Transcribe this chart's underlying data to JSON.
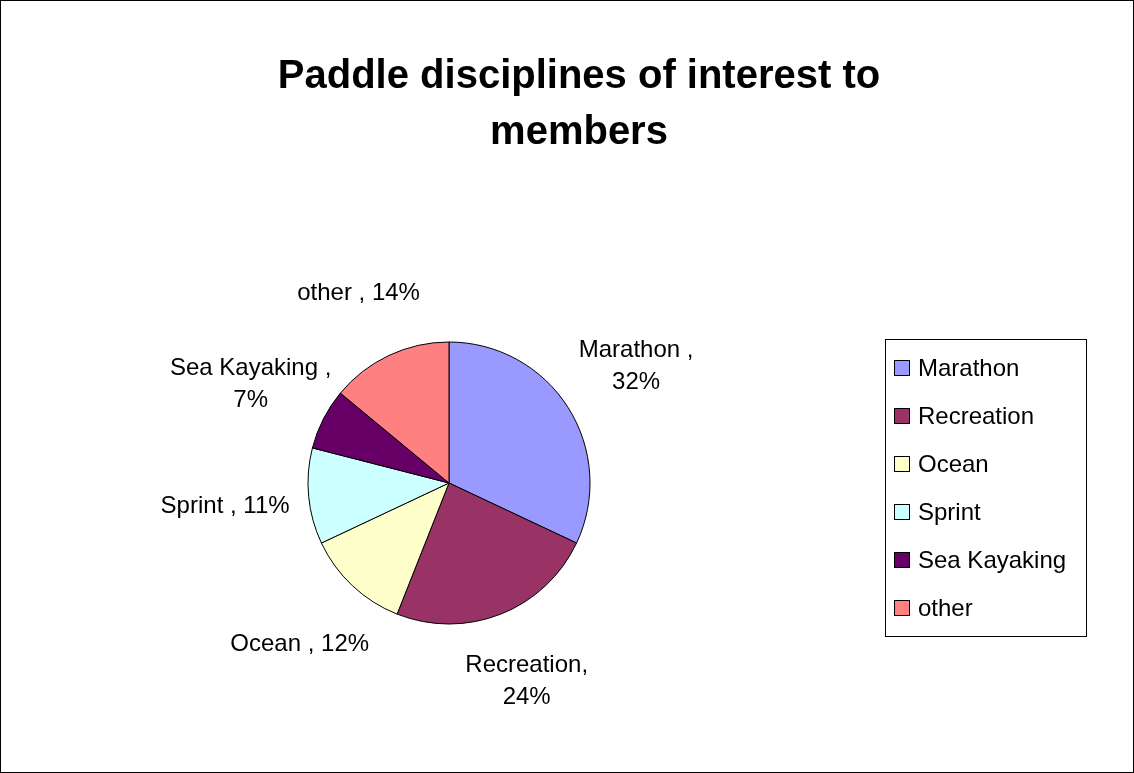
{
  "chart_data": {
    "type": "pie",
    "title": "Paddle disciplines of interest to members",
    "categories": [
      "Marathon",
      "Recreation",
      "Ocean",
      "Sprint",
      "Sea Kayaking",
      "other"
    ],
    "values": [
      32,
      24,
      12,
      11,
      7,
      14
    ],
    "colors": [
      "#9999ff",
      "#993366",
      "#ffffcc",
      "#ccffff",
      "#660066",
      "#ff8080"
    ],
    "value_labels": [
      "Marathon , 32%",
      "Recreation, 24%",
      "Ocean , 12%",
      "Sprint , 11%",
      "Sea Kayaking , 7%",
      "other , 14%"
    ],
    "legend": "right"
  }
}
